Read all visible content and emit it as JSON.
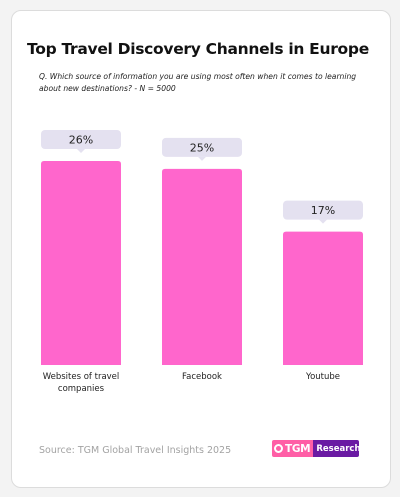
{
  "title": "Top Travel Discovery Channels in Europe",
  "subtitle": "Q. Which source of information you are using most often when it comes to learning about new destinations? - N = 5000",
  "source": "Source: TGM Global Travel Insights 2025",
  "logo": {
    "left": "TGM",
    "right": "Research"
  },
  "colors": {
    "bar": "#ff66cc",
    "label_bg": "#e4e1f0",
    "logo_pink": "#ff5ea6",
    "logo_purple": "#6a1aa3"
  },
  "chart_data": {
    "type": "bar",
    "title": "Top Travel Discovery Channels in Europe",
    "categories": [
      "Websites of travel companies",
      "Facebook",
      "Youtube"
    ],
    "category_lines": [
      [
        "Websites of travel",
        "companies"
      ],
      [
        "Facebook"
      ],
      [
        "Youtube"
      ]
    ],
    "values": [
      26,
      25,
      17
    ],
    "value_labels": [
      "26%",
      "25%",
      "17%"
    ],
    "ylim": [
      0,
      26
    ],
    "grid": false,
    "legend": "none"
  }
}
